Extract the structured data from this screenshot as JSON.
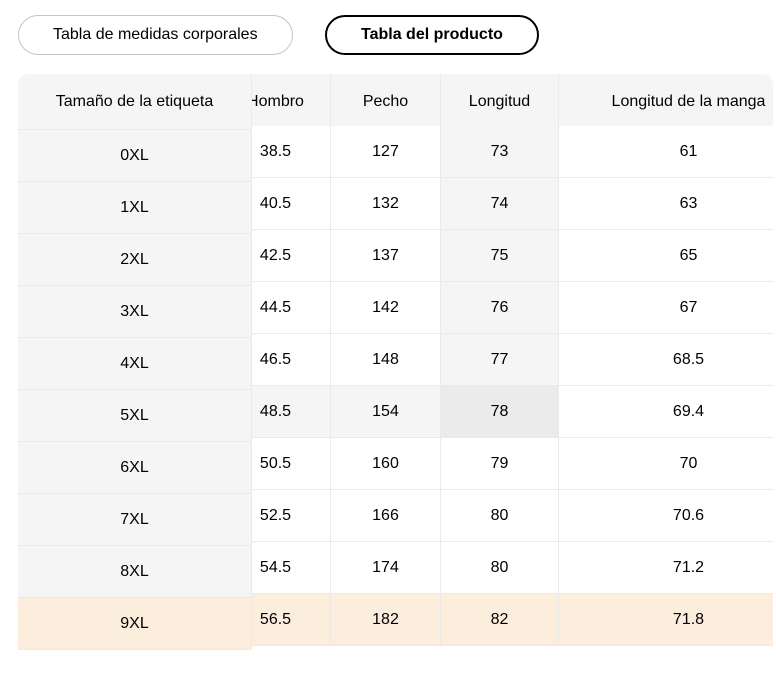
{
  "tabs": [
    {
      "label": "Tabla de medidas corporales",
      "active": false
    },
    {
      "label": "Tabla del producto",
      "active": true
    }
  ],
  "table": {
    "columns": [
      "Tamaño de la etiqueta",
      "Hombro",
      "Pecho",
      "Longitud",
      "Longitud de la manga"
    ],
    "rows": [
      {
        "label": "0XL",
        "values": [
          "38.5",
          "127",
          "73",
          "61"
        ]
      },
      {
        "label": "1XL",
        "values": [
          "40.5",
          "132",
          "74",
          "63"
        ]
      },
      {
        "label": "2XL",
        "values": [
          "42.5",
          "137",
          "75",
          "65"
        ]
      },
      {
        "label": "3XL",
        "values": [
          "44.5",
          "142",
          "76",
          "67"
        ]
      },
      {
        "label": "4XL",
        "values": [
          "46.5",
          "148",
          "77",
          "68.5"
        ]
      },
      {
        "label": "5XL",
        "values": [
          "48.5",
          "154",
          "78",
          "69.4"
        ]
      },
      {
        "label": "6XL",
        "values": [
          "50.5",
          "160",
          "79",
          "70"
        ]
      },
      {
        "label": "7XL",
        "values": [
          "52.5",
          "166",
          "80",
          "70.6"
        ]
      },
      {
        "label": "8XL",
        "values": [
          "54.5",
          "174",
          "80",
          "71.2"
        ]
      },
      {
        "label": "9XL",
        "values": [
          "56.5",
          "182",
          "82",
          "71.8"
        ]
      }
    ],
    "highlight": {
      "hover_row_index": 5,
      "hover_col_index": 2,
      "hover_value": "78",
      "selected_row_index": 9,
      "selected_row_label": "9XL"
    }
  },
  "colors": {
    "text": "#000000",
    "header_bg": "#f5f5f5",
    "sticky_col_bg": "#f5f5f5",
    "hover_band_bg": "#f5f5f5",
    "hover_cell_bg": "#ebebeb",
    "selected_row_bg": "#fceedd",
    "border": "#eaeaea",
    "tab_active_border": "#000000",
    "tab_inactive_border": "#c4c4c4"
  }
}
